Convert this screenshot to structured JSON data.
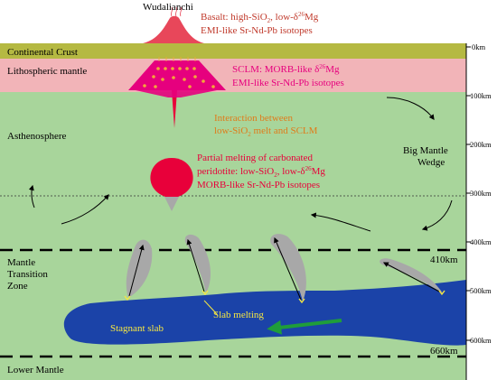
{
  "layers": {
    "continental_crust": "Continental Crust",
    "lithospheric_mantle": "Lithospheric mantle",
    "asthenosphere": "Asthenosphere",
    "mantle_transition_zone": [
      "Mantle",
      "Transition",
      "Zone"
    ],
    "lower_mantle": "Lower Mantle"
  },
  "depth_axis": {
    "ticks": [
      "0km",
      "100km",
      "200km",
      "300km",
      "400km",
      "500km",
      "600km"
    ],
    "boundary_410": "410km",
    "boundary_660": "660km"
  },
  "annotations": {
    "volcano_name": "Wudalianchi",
    "basalt_line1": "Basalt: high-SiO",
    "basalt_line1_sub": "2",
    "basalt_line1_rest": ", low-δ",
    "basalt_line1_sup": "26",
    "basalt_line1_end": "Mg",
    "basalt_line2": "EMI-like Sr-Nd-Pb isotopes",
    "sclm_line1": "SCLM: MORB-like δ",
    "sclm_line1_sup": "26",
    "sclm_line1_end": "Mg",
    "sclm_line2": "EMI-like Sr-Nd-Pb isotopes",
    "interaction_line1": "Interaction between",
    "interaction_line2_a": "low-SiO",
    "interaction_line2_sub": "2",
    "interaction_line2_b": " melt and SCLM",
    "partial_line1": "Partial melting of carbonated",
    "partial_line2_a": "peridotite: low-SiO",
    "partial_line2_sub": "2",
    "partial_line2_b": ", low-δ",
    "partial_line2_sup": "26",
    "partial_line2_end": "Mg",
    "partial_line3": "MORB-like Sr-Nd-Pb isotopes",
    "big_mantle_wedge_1": "Big Mantle",
    "big_mantle_wedge_2": "Wedge",
    "slab_melting": "Slab melting",
    "stagnant_slab": "Stagnant slab"
  },
  "colors": {
    "crust": "#b5b942",
    "lithosphere": "#f2b4b8",
    "asthenosphere": "#a8d59b",
    "lower_mantle": "#a8d59b",
    "slab": "#1b43a8",
    "plume": "#a8a8a8",
    "melt": "#e8003a",
    "sclm_melt": "#e6007e",
    "basalt_text": "#c0392b",
    "interaction_text": "#e07b1a",
    "slab_text": "#f5e642",
    "green_arrow": "#1f9d3a"
  }
}
